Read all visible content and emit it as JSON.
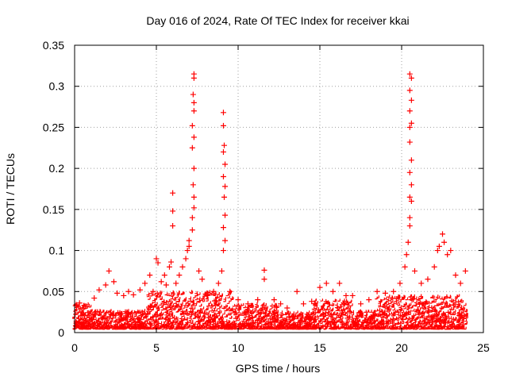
{
  "chart_data": {
    "type": "scatter",
    "title": "Day 016 of 2024, Rate Of TEC Index for receiver kkai",
    "xlabel": "GPS time / hours",
    "ylabel": "ROTI / TECUs",
    "xlim": [
      0,
      25
    ],
    "ylim": [
      0,
      0.35
    ],
    "xticks": [
      0,
      5,
      10,
      15,
      20,
      25
    ],
    "xtick_labels": [
      "0",
      "5",
      "10",
      "15",
      "20",
      "25"
    ],
    "yticks": [
      0,
      0.05,
      0.1,
      0.15,
      0.2,
      0.25,
      0.3,
      0.35
    ],
    "ytick_labels": [
      "0",
      "0.05",
      "0.1",
      "0.15",
      "0.2",
      "0.25",
      "0.3",
      "0.35"
    ],
    "grid": true,
    "marker": "plus",
    "color": "#ff0000",
    "series": [
      {
        "values": [
          [
            0.1,
            0.034
          ],
          [
            0.3,
            0.036
          ],
          [
            0.7,
            0.032
          ],
          [
            1.2,
            0.042
          ],
          [
            1.5,
            0.052
          ],
          [
            1.9,
            0.058
          ],
          [
            2.1,
            0.075
          ],
          [
            2.4,
            0.062
          ],
          [
            2.6,
            0.048
          ],
          [
            3.0,
            0.045
          ],
          [
            3.3,
            0.05
          ],
          [
            3.6,
            0.046
          ],
          [
            4.0,
            0.052
          ],
          [
            4.3,
            0.06
          ],
          [
            4.6,
            0.07
          ],
          [
            4.8,
            0.05
          ],
          [
            5.0,
            0.09
          ],
          [
            5.1,
            0.085
          ],
          [
            5.3,
            0.062
          ],
          [
            5.5,
            0.07
          ],
          [
            5.6,
            0.058
          ],
          [
            5.8,
            0.08
          ],
          [
            5.9,
            0.086
          ],
          [
            6.0,
            0.13
          ],
          [
            6.0,
            0.148
          ],
          [
            6.0,
            0.17
          ],
          [
            6.2,
            0.06
          ],
          [
            6.4,
            0.07
          ],
          [
            6.6,
            0.08
          ],
          [
            6.8,
            0.09
          ],
          [
            6.9,
            0.1
          ],
          [
            7.0,
            0.105
          ],
          [
            7.0,
            0.112
          ],
          [
            7.2,
            0.125
          ],
          [
            7.2,
            0.14
          ],
          [
            7.3,
            0.152
          ],
          [
            7.3,
            0.165
          ],
          [
            7.25,
            0.18
          ],
          [
            7.3,
            0.2
          ],
          [
            7.2,
            0.225
          ],
          [
            7.3,
            0.238
          ],
          [
            7.2,
            0.252
          ],
          [
            7.3,
            0.27
          ],
          [
            7.3,
            0.28
          ],
          [
            7.25,
            0.29
          ],
          [
            7.3,
            0.31
          ],
          [
            7.3,
            0.315
          ],
          [
            7.6,
            0.075
          ],
          [
            7.8,
            0.065
          ],
          [
            8.1,
            0.045
          ],
          [
            8.5,
            0.05
          ],
          [
            8.8,
            0.06
          ],
          [
            9.0,
            0.075
          ],
          [
            9.1,
            0.1
          ],
          [
            9.2,
            0.112
          ],
          [
            9.1,
            0.128
          ],
          [
            9.2,
            0.143
          ],
          [
            9.15,
            0.165
          ],
          [
            9.2,
            0.178
          ],
          [
            9.1,
            0.19
          ],
          [
            9.2,
            0.205
          ],
          [
            9.1,
            0.22
          ],
          [
            9.15,
            0.228
          ],
          [
            9.1,
            0.252
          ],
          [
            9.1,
            0.268
          ],
          [
            9.5,
            0.05
          ],
          [
            10.0,
            0.04
          ],
          [
            10.6,
            0.035
          ],
          [
            11.2,
            0.04
          ],
          [
            11.6,
            0.065
          ],
          [
            11.6,
            0.076
          ],
          [
            12.2,
            0.04
          ],
          [
            12.6,
            0.035
          ],
          [
            13.0,
            0.03
          ],
          [
            13.6,
            0.05
          ],
          [
            14.0,
            0.035
          ],
          [
            14.5,
            0.038
          ],
          [
            15.0,
            0.055
          ],
          [
            15.4,
            0.06
          ],
          [
            15.8,
            0.05
          ],
          [
            16.2,
            0.06
          ],
          [
            16.6,
            0.045
          ],
          [
            17.0,
            0.045
          ],
          [
            17.5,
            0.035
          ],
          [
            18.0,
            0.04
          ],
          [
            18.5,
            0.05
          ],
          [
            19.0,
            0.048
          ],
          [
            19.5,
            0.05
          ],
          [
            19.9,
            0.06
          ],
          [
            20.2,
            0.08
          ],
          [
            20.3,
            0.095
          ],
          [
            20.4,
            0.11
          ],
          [
            20.5,
            0.13
          ],
          [
            20.5,
            0.14
          ],
          [
            20.6,
            0.16
          ],
          [
            20.5,
            0.165
          ],
          [
            20.6,
            0.18
          ],
          [
            20.5,
            0.195
          ],
          [
            20.6,
            0.21
          ],
          [
            20.5,
            0.232
          ],
          [
            20.5,
            0.25
          ],
          [
            20.6,
            0.255
          ],
          [
            20.5,
            0.27
          ],
          [
            20.6,
            0.283
          ],
          [
            20.5,
            0.295
          ],
          [
            20.6,
            0.31
          ],
          [
            20.5,
            0.315
          ],
          [
            20.8,
            0.075
          ],
          [
            21.2,
            0.06
          ],
          [
            21.6,
            0.065
          ],
          [
            22.0,
            0.08
          ],
          [
            22.2,
            0.1
          ],
          [
            22.3,
            0.105
          ],
          [
            22.5,
            0.12
          ],
          [
            22.6,
            0.11
          ],
          [
            22.8,
            0.095
          ],
          [
            23.0,
            0.1
          ],
          [
            23.3,
            0.07
          ],
          [
            23.6,
            0.06
          ],
          [
            23.9,
            0.075
          ]
        ]
      }
    ]
  }
}
